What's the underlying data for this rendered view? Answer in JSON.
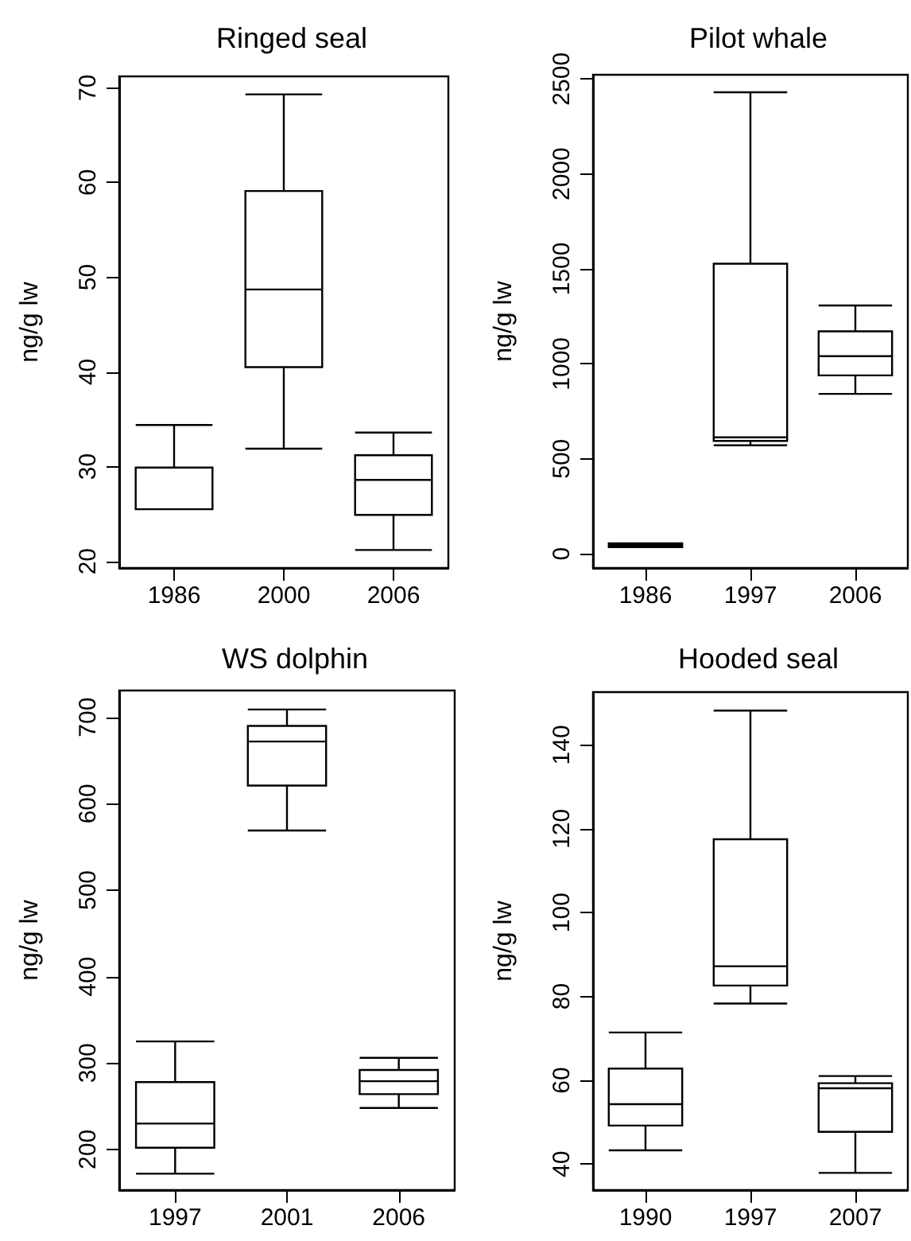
{
  "chart_data": [
    {
      "type": "box",
      "title": "Ringed seal",
      "ylabel": "ng/g lw",
      "categories": [
        "1986",
        "2000",
        "2006"
      ],
      "ylim": [
        19.3,
        71.2
      ],
      "yticks": [
        20,
        30,
        40,
        50,
        60,
        70
      ],
      "boxes": [
        {
          "low": 25.5,
          "q1": 25.5,
          "median": 25.5,
          "q3": 29.9,
          "high": 34.4
        },
        {
          "low": 31.9,
          "q1": 40.5,
          "median": 48.7,
          "q3": 59.1,
          "high": 69.3
        },
        {
          "low": 21.2,
          "q1": 24.9,
          "median": 28.6,
          "q3": 31.2,
          "high": 33.6
        }
      ]
    },
    {
      "type": "box",
      "title": "Pilot whale",
      "ylabel": "ng/g lw",
      "categories": [
        "1986",
        "1997",
        "2006"
      ],
      "ylim": [
        -75,
        2522
      ],
      "yticks": [
        0,
        500,
        1000,
        1500,
        2000,
        2500
      ],
      "boxes": [
        {
          "low": 35,
          "q1": 35,
          "median": 45,
          "q3": 55,
          "high": 55
        },
        {
          "low": 571,
          "q1": 594,
          "median": 613,
          "q3": 1527,
          "high": 2430
        },
        {
          "low": 842,
          "q1": 939,
          "median": 1040,
          "q3": 1171,
          "high": 1307
        }
      ]
    },
    {
      "type": "box",
      "title": "WS dolphin",
      "ylabel": "ng/g lw",
      "categories": [
        "1997",
        "2001",
        "2006"
      ],
      "ylim": [
        153,
        731
      ],
      "yticks": [
        200,
        300,
        400,
        500,
        600,
        700
      ],
      "boxes": [
        {
          "low": 172,
          "q1": 202,
          "median": 230,
          "q3": 278,
          "high": 325
        },
        {
          "low": 569,
          "q1": 621,
          "median": 672,
          "q3": 690,
          "high": 709
        },
        {
          "low": 248,
          "q1": 264,
          "median": 279,
          "q3": 292,
          "high": 306
        }
      ]
    },
    {
      "type": "box",
      "title": "Hooded seal",
      "ylabel": "ng/g lw",
      "categories": [
        "1990",
        "1997",
        "2007"
      ],
      "ylim": [
        33.8,
        152.6
      ],
      "yticks": [
        40,
        60,
        80,
        100,
        120,
        140
      ],
      "boxes": [
        {
          "low": 43.3,
          "q1": 49.2,
          "median": 54.3,
          "q3": 62.8,
          "high": 71.4
        },
        {
          "low": 78.3,
          "q1": 82.6,
          "median": 87.2,
          "q3": 117.5,
          "high": 148.2
        },
        {
          "low": 37.9,
          "q1": 47.7,
          "median": 58.1,
          "q3": 59.3,
          "high": 61
        }
      ]
    }
  ]
}
